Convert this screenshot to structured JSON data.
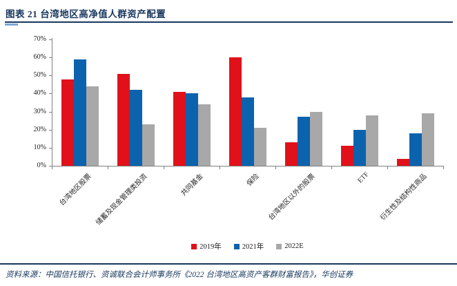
{
  "header": {
    "title": "图表 21  台湾地区高净值人群资产配置"
  },
  "footer": {
    "source": "资料来源：中国信托银行、资诚联合会计师事务所《2022 台湾地区高资产客群财富报告》，华创证券"
  },
  "colors": {
    "title_navy": "#17375e",
    "rule_accent": "#7ba7d7",
    "axis_gray": "#808080",
    "series_2019": "#e0111a",
    "series_2021": "#0b63ae",
    "series_2022e": "#a8a8a8"
  },
  "chart_data": {
    "type": "bar",
    "title": "台湾地区高净值人群资产配置",
    "categories": [
      "台湾地区股票",
      "储蓄及现金管理类投资",
      "共同基金",
      "保险",
      "台湾地区以外的股票",
      "ETF",
      "衍生性及结构性商品"
    ],
    "series": [
      {
        "name": "2019年",
        "color": "#e0111a",
        "values": [
          48,
          51,
          41,
          60,
          13,
          11,
          4
        ]
      },
      {
        "name": "2021年",
        "color": "#0b63ae",
        "values": [
          59,
          42,
          40,
          38,
          27,
          20,
          18
        ]
      },
      {
        "name": "2022E",
        "color": "#a8a8a8",
        "values": [
          44,
          23,
          34,
          21,
          30,
          28,
          29
        ]
      }
    ],
    "xlabel": "",
    "ylabel": "",
    "ylim": [
      0,
      70
    ],
    "ytick_step": 10,
    "ytick_format": "percent",
    "grid": false,
    "legend_position": "bottom"
  }
}
